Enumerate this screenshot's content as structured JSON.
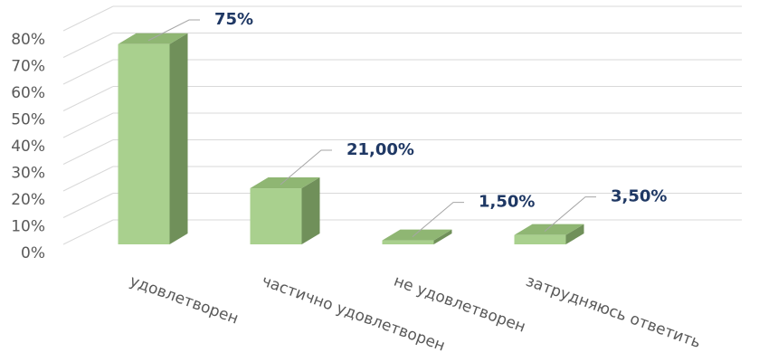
{
  "chart_data": {
    "type": "bar3d",
    "categories": [
      "удовлетворен",
      "частично удовлетворен",
      "не удовлетворен",
      "затрудняюсь ответить"
    ],
    "values": [
      75,
      21,
      1.5,
      3.5
    ],
    "value_labels": [
      "75%",
      "21,00%",
      "1,50%",
      "3,50%"
    ],
    "color": "#a9d08e",
    "ylim": [
      0,
      80
    ],
    "yticks": [
      {
        "value": 0,
        "label": "0%"
      },
      {
        "value": 10,
        "label": "10%"
      },
      {
        "value": 20,
        "label": "20%"
      },
      {
        "value": 30,
        "label": "30%"
      },
      {
        "value": 40,
        "label": "40%"
      },
      {
        "value": 50,
        "label": "50%"
      },
      {
        "value": 60,
        "label": "60%"
      },
      {
        "value": 70,
        "label": "70%"
      },
      {
        "value": 80,
        "label": "80%"
      }
    ],
    "grid": true
  }
}
